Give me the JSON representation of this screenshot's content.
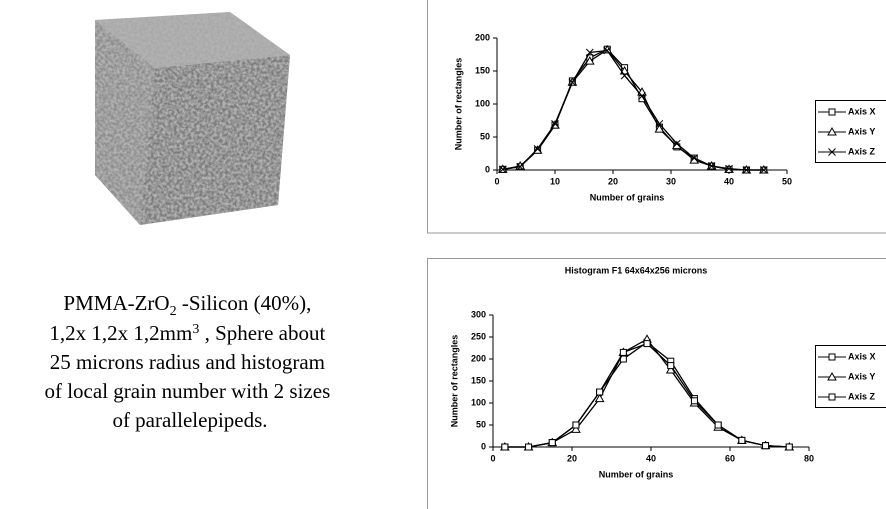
{
  "caption": {
    "parts": [
      "PMMA-ZrO",
      "2",
      " -Silicon (40%),",
      "1,2x 1,2x 1,2mm",
      "3",
      " , Sphere about",
      "25 microns radius and histogram",
      "of local grain number with 2 sizes",
      "of parallelepipeds."
    ]
  },
  "chart_data": [
    {
      "type": "line",
      "x_label": "Number of grains",
      "y_label": "Number of rectangles",
      "x": [
        1,
        4,
        7,
        10,
        13,
        16,
        19,
        22,
        25,
        28,
        31,
        34,
        37,
        40,
        43,
        46
      ],
      "xlim": [
        0,
        50
      ],
      "xticks": [
        0,
        10,
        20,
        30,
        40,
        50
      ],
      "ylim": [
        0,
        200
      ],
      "yticks": [
        0,
        50,
        100,
        150,
        200
      ],
      "series": [
        {
          "name": "Axis X",
          "color": "#000000",
          "marker": "square",
          "values": [
            1,
            5,
            30,
            68,
            135,
            170,
            183,
            155,
            108,
            65,
            35,
            18,
            6,
            1,
            0,
            0
          ]
        },
        {
          "name": "Axis Y",
          "color": "#000000",
          "marker": "triangle",
          "values": [
            1,
            6,
            30,
            68,
            133,
            165,
            182,
            150,
            118,
            62,
            37,
            15,
            6,
            1,
            0,
            0
          ]
        },
        {
          "name": "Axis Z",
          "color": "#000000",
          "marker": "x",
          "values": [
            1,
            5,
            32,
            70,
            133,
            178,
            181,
            143,
            112,
            70,
            40,
            18,
            6,
            2,
            0,
            0
          ]
        }
      ]
    },
    {
      "type": "line",
      "title": "Histogram F1 64x64x256 microns",
      "x_label": "Number of grains",
      "y_label": "Number of rectangles",
      "x": [
        3,
        9,
        15,
        21,
        27,
        33,
        39,
        45,
        51,
        57,
        63,
        69,
        75
      ],
      "xlim": [
        0,
        80
      ],
      "xticks": [
        0,
        20,
        40,
        60,
        80
      ],
      "ylim": [
        0,
        300
      ],
      "yticks": [
        0,
        50,
        100,
        150,
        200,
        250,
        300
      ],
      "series": [
        {
          "name": "Axis X",
          "color": "#000000",
          "marker": "square",
          "values": [
            0,
            0,
            10,
            50,
            125,
            200,
            238,
            195,
            110,
            50,
            15,
            3,
            0
          ]
        },
        {
          "name": "Axis Y",
          "color": "#000000",
          "marker": "triangle",
          "values": [
            0,
            0,
            10,
            40,
            110,
            215,
            245,
            175,
            100,
            45,
            15,
            3,
            0
          ]
        },
        {
          "name": "Axis Z",
          "color": "#000000",
          "marker": "square",
          "values": [
            0,
            0,
            10,
            50,
            125,
            215,
            235,
            185,
            105,
            50,
            15,
            3,
            0
          ]
        }
      ]
    }
  ]
}
